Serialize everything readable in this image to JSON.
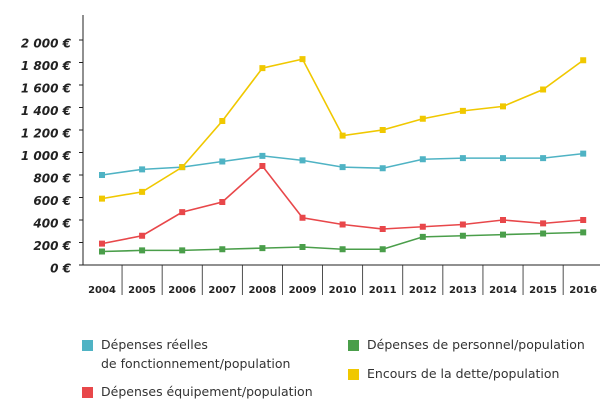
{
  "chart_data": {
    "type": "line",
    "categories": [
      "2004",
      "2005",
      "2006",
      "2007",
      "2008",
      "2009",
      "2010",
      "2011",
      "2012",
      "2013",
      "2014",
      "2015",
      "2016"
    ],
    "series": [
      {
        "name": "Dépenses réelles\nde fonctionnement/population",
        "color": "#4fb3c4",
        "values": [
          800,
          850,
          870,
          920,
          970,
          930,
          870,
          860,
          940,
          950,
          950,
          950,
          990
        ]
      },
      {
        "name": "Dépenses équipement/population",
        "color": "#e8474a",
        "values": [
          190,
          260,
          470,
          560,
          880,
          420,
          360,
          320,
          340,
          360,
          400,
          370,
          400
        ]
      },
      {
        "name": "Dépenses de personnel/population",
        "color": "#4a9e4a",
        "values": [
          120,
          130,
          130,
          140,
          150,
          160,
          140,
          140,
          250,
          260,
          270,
          280,
          290
        ]
      },
      {
        "name": "Encours de la dette/population",
        "color": "#f0c800",
        "values": [
          590,
          650,
          870,
          1280,
          1750,
          1830,
          1150,
          1200,
          1300,
          1370,
          1410,
          1560,
          1820
        ]
      }
    ],
    "ylim": [
      0,
      2000
    ],
    "yticks": [
      {
        "value": 0,
        "label": "0 €"
      },
      {
        "value": 200,
        "label": "200 €"
      },
      {
        "value": 400,
        "label": "400 €"
      },
      {
        "value": 600,
        "label": "600 €"
      },
      {
        "value": 800,
        "label": "800 €"
      },
      {
        "value": 1000,
        "label": "1 000 €"
      },
      {
        "value": 1200,
        "label": "1 200 €"
      },
      {
        "value": 1400,
        "label": "1 400 €"
      },
      {
        "value": 1600,
        "label": "1 600 €"
      },
      {
        "value": 1800,
        "label": "1 800 €"
      },
      {
        "value": 2000,
        "label": "2 000 €"
      }
    ],
    "grid": false
  }
}
